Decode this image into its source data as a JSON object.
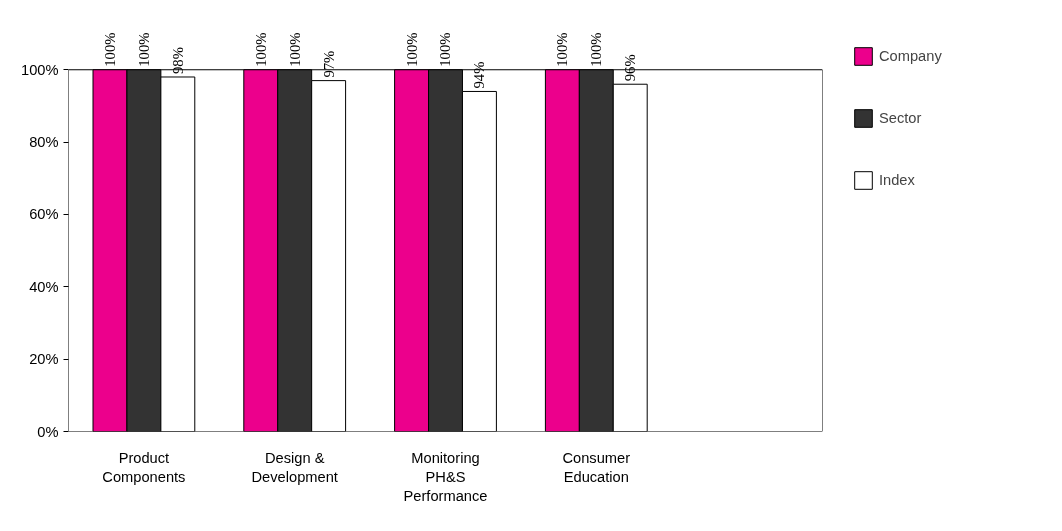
{
  "chart_data": {
    "type": "bar",
    "categories": [
      "Product Components",
      "Design & Development",
      "Monitoring PH&S Performance",
      "Consumer Education",
      null
    ],
    "series": [
      {
        "name": "Company",
        "color": "#ec008c",
        "values": [
          100,
          100,
          100,
          100,
          null
        ]
      },
      {
        "name": "Sector",
        "color": "#333333",
        "values": [
          100,
          100,
          100,
          100,
          null
        ]
      },
      {
        "name": "Index",
        "color": "#ffffff",
        "values": [
          98,
          97,
          94,
          96,
          null
        ]
      }
    ],
    "ylim": [
      0,
      100
    ],
    "yticks": [
      {
        "value": 0,
        "label": "0%"
      },
      {
        "value": 20,
        "label": "20%"
      },
      {
        "value": 40,
        "label": "40%"
      },
      {
        "value": 60,
        "label": "60%"
      },
      {
        "value": 80,
        "label": "80%"
      },
      {
        "value": 100,
        "label": "100%"
      }
    ],
    "value_labels": [
      [
        "100%",
        "100%",
        "100%",
        "100%",
        null
      ],
      [
        "100%",
        "100%",
        "100%",
        "100%",
        null
      ],
      [
        "98%",
        "97%",
        "94%",
        "96%",
        null
      ]
    ],
    "grid": false,
    "legend": "right"
  }
}
